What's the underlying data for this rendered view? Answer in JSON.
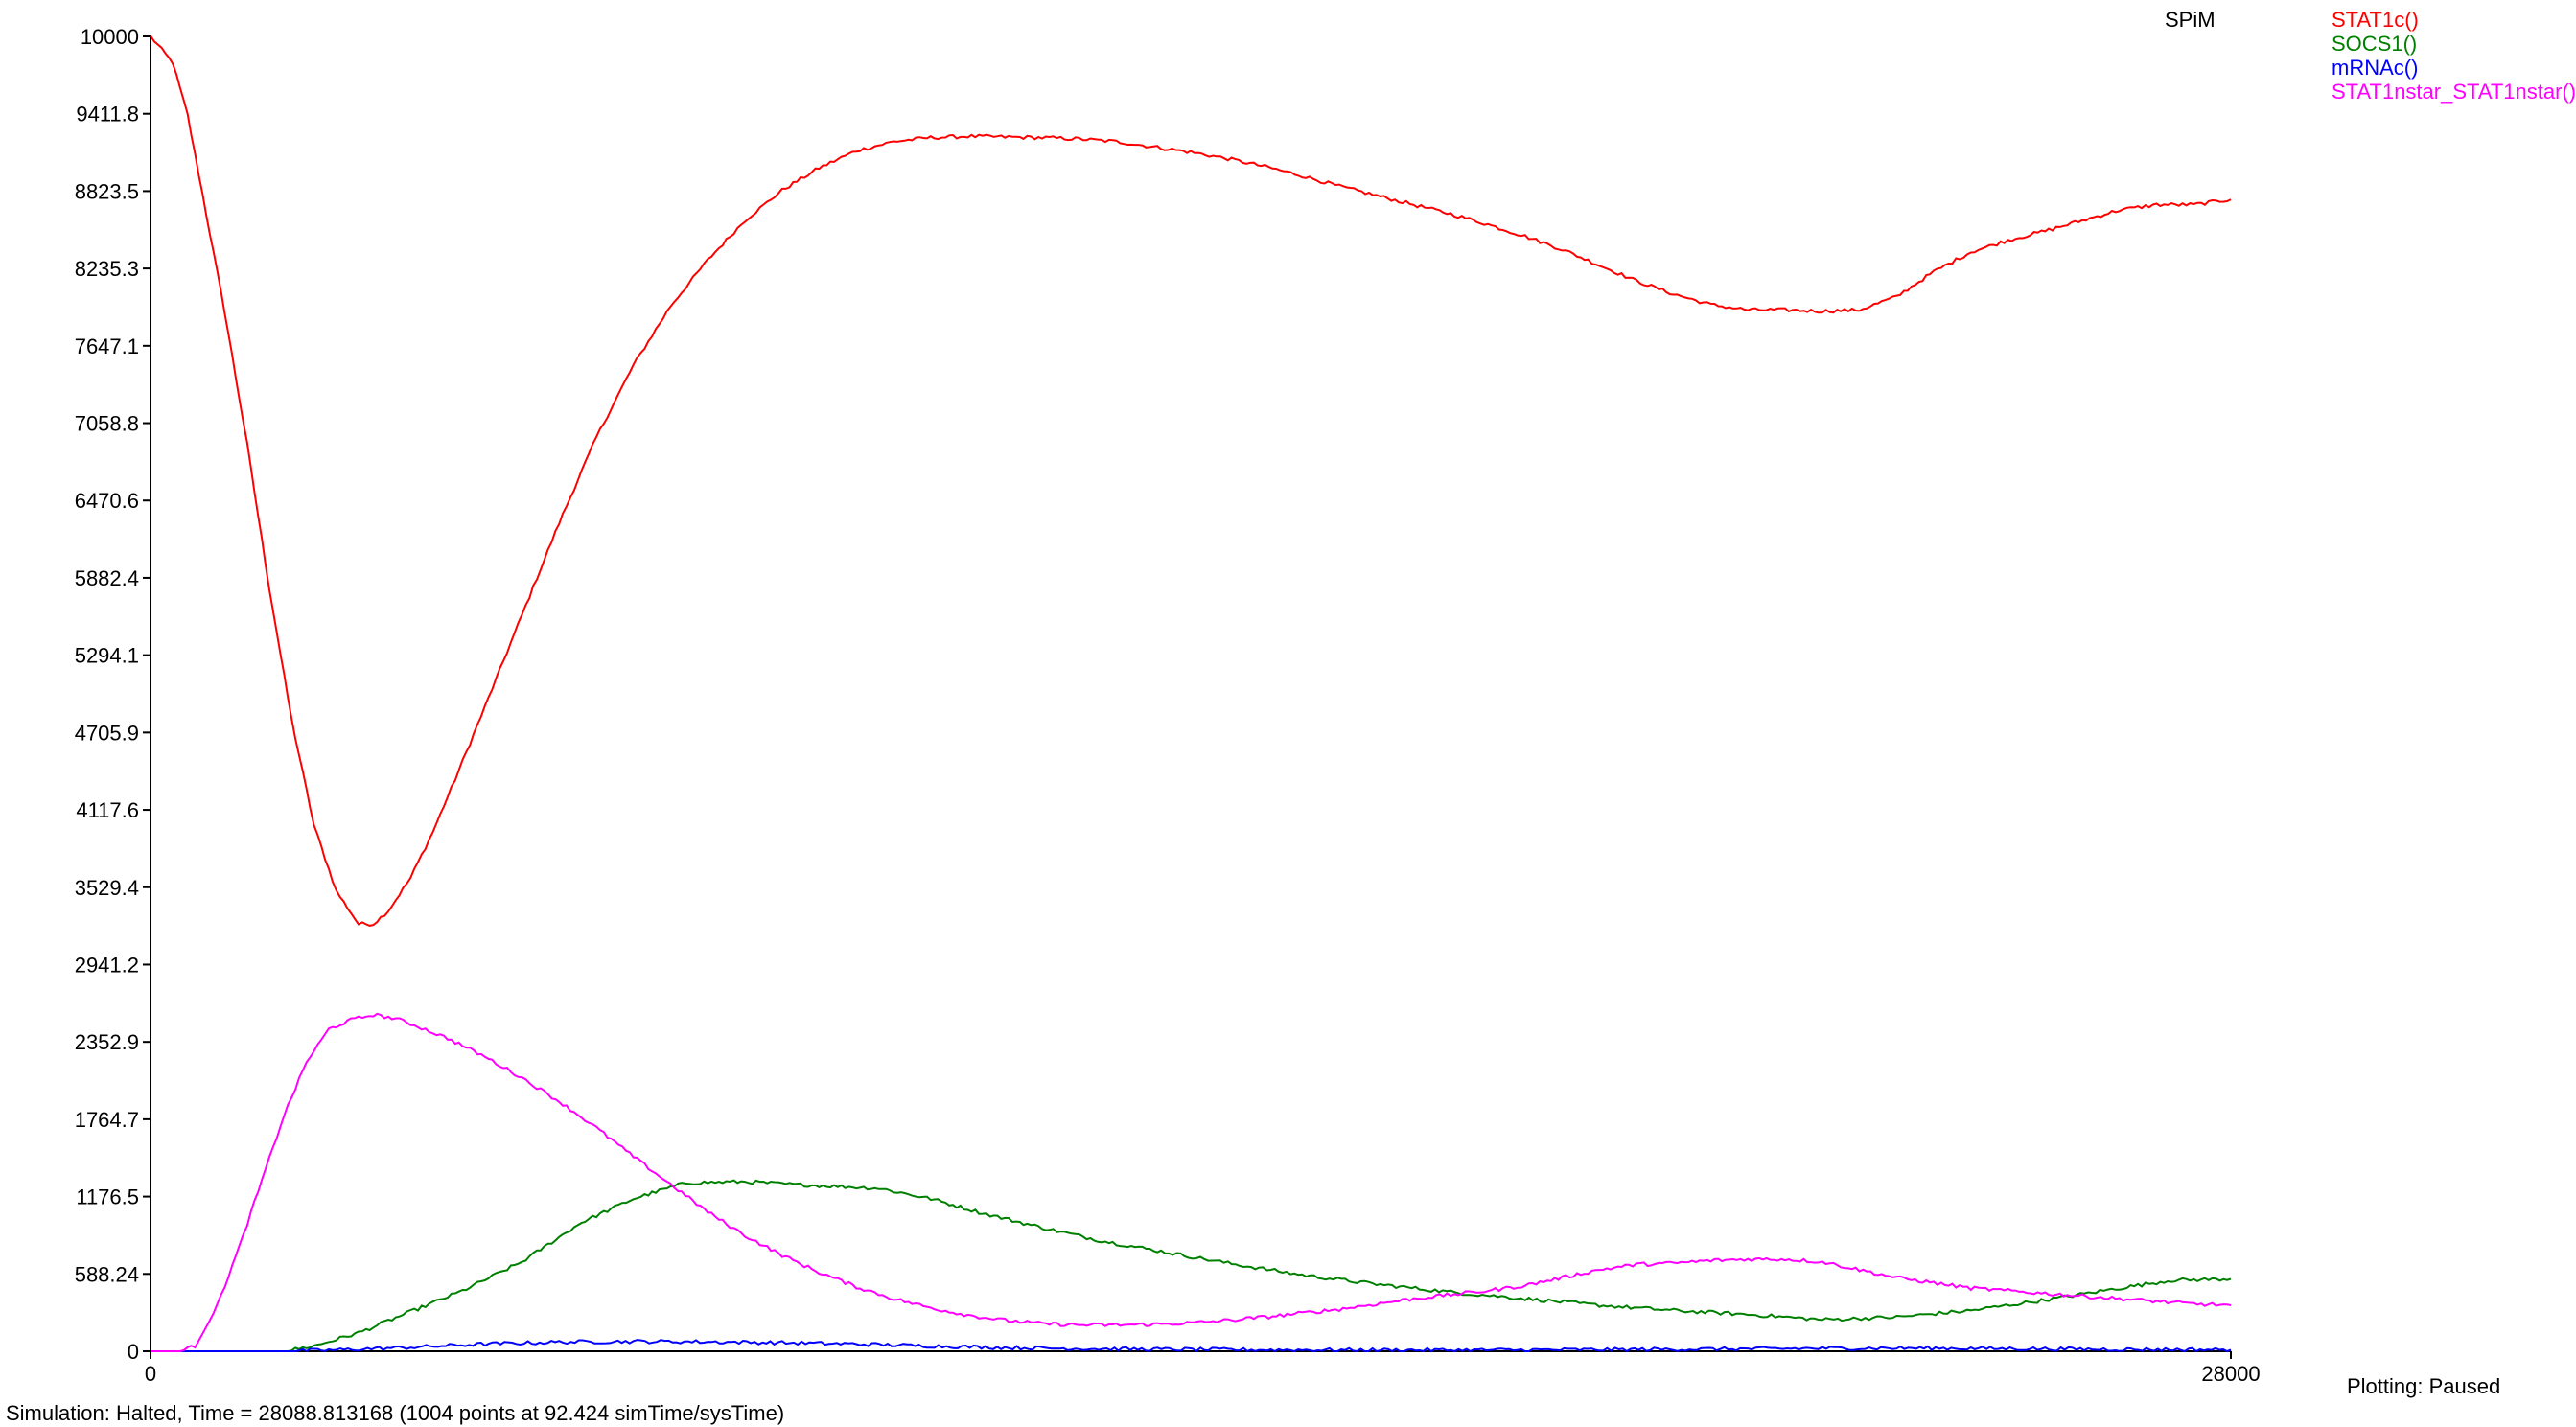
{
  "app_name": "SPiM",
  "status_text": "Simulation: Halted, Time = 28088.813168 (1004 points at 92.424 simTime/sysTime)",
  "plotting_status": "Plotting: Paused",
  "chart_data": {
    "type": "line",
    "title": "",
    "xlabel": "",
    "ylabel": "",
    "xlim": [
      0,
      28000
    ],
    "ylim": [
      0,
      10000
    ],
    "x_ticks": [
      "0",
      "28000"
    ],
    "y_ticks": [
      "10000",
      "9411.8",
      "8823.5",
      "8235.3",
      "7647.1",
      "7058.8",
      "6470.6",
      "5882.4",
      "5294.1",
      "4705.9",
      "4117.6",
      "3529.4",
      "2941.2",
      "2352.9",
      "1764.7",
      "1176.5",
      "588.24",
      "0"
    ],
    "legend_position": "top-right",
    "series": [
      {
        "name": "STAT1c()",
        "color": "#ff0000",
        "x": [
          0,
          300,
          500,
          700,
          1000,
          1300,
          1600,
          1900,
          2200,
          2500,
          2800,
          3000,
          3200,
          3500,
          3800,
          4100,
          4500,
          5000,
          5500,
          6000,
          6500,
          7000,
          7500,
          8000,
          8500,
          9000,
          9500,
          10000,
          10500,
          11000,
          11500,
          12000,
          12500,
          13000,
          13500,
          14000,
          14500,
          15000,
          15500,
          16000,
          16500,
          17000,
          17500,
          18000,
          18500,
          19000,
          19500,
          20000,
          20500,
          21000,
          21500,
          22000,
          22500,
          23000,
          23500,
          24000,
          24500,
          25000,
          25500,
          26000,
          26500,
          27000,
          27500,
          28000
        ],
        "y": [
          10000,
          9800,
          9400,
          8800,
          7900,
          6900,
          5800,
          4800,
          4000,
          3500,
          3250,
          3250,
          3350,
          3600,
          3950,
          4350,
          4900,
          5600,
          6300,
          6950,
          7500,
          7950,
          8300,
          8600,
          8830,
          9000,
          9130,
          9200,
          9230,
          9240,
          9235,
          9230,
          9220,
          9200,
          9160,
          9120,
          9070,
          9010,
          8940,
          8860,
          8790,
          8720,
          8650,
          8570,
          8480,
          8380,
          8260,
          8140,
          8040,
          7960,
          7920,
          7920,
          7910,
          7920,
          8020,
          8210,
          8360,
          8450,
          8520,
          8600,
          8680,
          8720,
          8720,
          8760
        ]
      },
      {
        "name": "SOCS1()",
        "color": "#008000",
        "x": [
          0,
          1000,
          1800,
          2200,
          2800,
          3500,
          4200,
          5000,
          5800,
          6500,
          7200,
          8000,
          8600,
          9000,
          9800,
          10500,
          11200,
          12000,
          12800,
          13600,
          14500,
          15500,
          16500,
          17500,
          18500,
          19500,
          20500,
          21500,
          22500,
          23500,
          24500,
          25500,
          26500,
          27200,
          28000
        ],
        "y": [
          0,
          0,
          0,
          40,
          140,
          300,
          460,
          680,
          980,
          1160,
          1280,
          1290,
          1270,
          1260,
          1240,
          1160,
          1050,
          940,
          840,
          760,
          670,
          580,
          510,
          450,
          400,
          350,
          310,
          280,
          240,
          260,
          310,
          390,
          480,
          540,
          550
        ]
      },
      {
        "name": "mRNAc()",
        "color": "#0000ff",
        "x": [
          0,
          1800,
          2500,
          3500,
          4500,
          5500,
          6500,
          7500,
          8500,
          9500,
          10500,
          11500,
          12500,
          13500,
          14500,
          15500,
          16500,
          17500,
          18500,
          19500,
          20500,
          21500,
          22500,
          23500,
          24500,
          25500,
          26500,
          28000
        ],
        "y": [
          0,
          0,
          10,
          30,
          55,
          70,
          75,
          72,
          65,
          55,
          40,
          28,
          20,
          15,
          12,
          10,
          9,
          9,
          10,
          12,
          15,
          18,
          22,
          24,
          22,
          18,
          14,
          12
        ]
      },
      {
        "name": "STAT1nstar_STAT1nstar()",
        "color": "#ff00ff",
        "x": [
          0,
          200,
          400,
          600,
          900,
          1200,
          1500,
          1800,
          2100,
          2400,
          2700,
          3000,
          3300,
          3600,
          4000,
          4500,
          5000,
          5500,
          6000,
          6500,
          7000,
          7500,
          8000,
          8500,
          9000,
          9500,
          10000,
          10500,
          11000,
          11500,
          12000,
          12500,
          13000,
          13500,
          14000,
          14500,
          15000,
          15500,
          16000,
          16500,
          17000,
          17500,
          18000,
          18500,
          19000,
          19500,
          20000,
          20500,
          21000,
          21500,
          22000,
          22500,
          23000,
          23500,
          24000,
          24500,
          25000,
          25500,
          26000,
          26500,
          27000,
          27500,
          28000
        ],
        "y": [
          0,
          0,
          0,
          40,
          350,
          800,
          1300,
          1800,
          2200,
          2450,
          2520,
          2560,
          2530,
          2470,
          2380,
          2240,
          2080,
          1900,
          1700,
          1480,
          1270,
          1060,
          880,
          730,
          600,
          490,
          400,
          330,
          275,
          235,
          210,
          200,
          200,
          205,
          215,
          235,
          260,
          290,
          320,
          360,
          400,
          430,
          460,
          500,
          560,
          620,
          660,
          670,
          690,
          700,
          700,
          680,
          620,
          560,
          520,
          480,
          460,
          440,
          420,
          400,
          380,
          360,
          350
        ]
      }
    ]
  }
}
